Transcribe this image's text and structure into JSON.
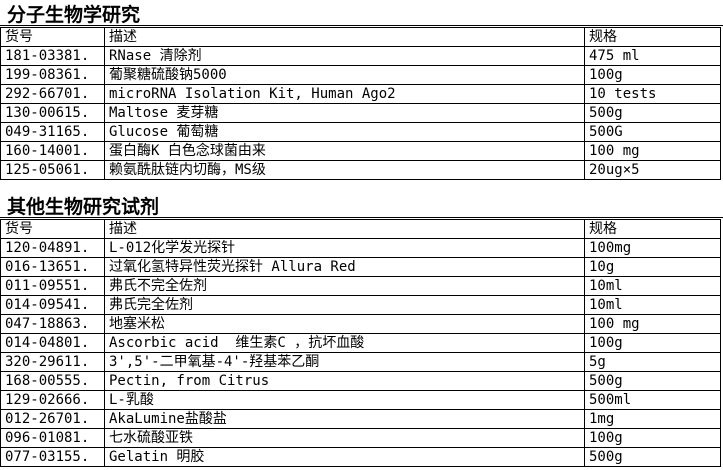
{
  "page": {
    "background_color": "#ffffff",
    "text_color": "#000000",
    "border_color": "#000000"
  },
  "sections": [
    {
      "title": "分子生物学研究",
      "columns": [
        "货号",
        "描述",
        "规格"
      ],
      "rows": [
        [
          "181-03381.",
          "RNase 清除剂",
          "475 ml"
        ],
        [
          "199-08361.",
          "葡聚糖硫酸钠5000",
          "100g"
        ],
        [
          "292-66701.",
          "microRNA Isolation Kit, Human Ago2",
          "10 tests"
        ],
        [
          "130-00615.",
          "Maltose 麦芽糖",
          "500g"
        ],
        [
          "049-31165.",
          "Glucose 葡萄糖",
          "500G"
        ],
        [
          "160-14001.",
          "蛋白酶K 白色念球菌由来",
          "100 mg"
        ],
        [
          "125-05061.",
          "赖氨酰肽链内切酶，MS级",
          "20ug×5"
        ]
      ]
    },
    {
      "title": "其他生物研究试剂",
      "columns": [
        "货号",
        "描述",
        "规格"
      ],
      "rows": [
        [
          "120-04891.",
          "L-012化学发光探针",
          "100mg"
        ],
        [
          "016-13651.",
          "过氧化氢特异性荧光探针 Allura Red",
          "10g"
        ],
        [
          "011-09551.",
          "弗氏不完全佐剂",
          "10ml"
        ],
        [
          "014-09541.",
          "弗氏完全佐剂",
          "10ml"
        ],
        [
          "047-18863.",
          "地塞米松",
          "100 mg"
        ],
        [
          "014-04801.",
          "Ascorbic acid  维生素C ，抗坏血酸",
          "100g"
        ],
        [
          "320-29611.",
          "3',5'-二甲氧基-4'-羟基苯乙酮",
          "5g"
        ],
        [
          "168-00555.",
          "Pectin, from Citrus",
          "500g"
        ],
        [
          "129-02666.",
          "L-乳酸",
          "500ml"
        ],
        [
          "012-26701.",
          "AkaLumine盐酸盐",
          "1mg"
        ],
        [
          "096-01081.",
          "七水硫酸亚铁",
          "100g"
        ],
        [
          "077-03155.",
          "Gelatin 明胶",
          "500g"
        ]
      ]
    }
  ]
}
